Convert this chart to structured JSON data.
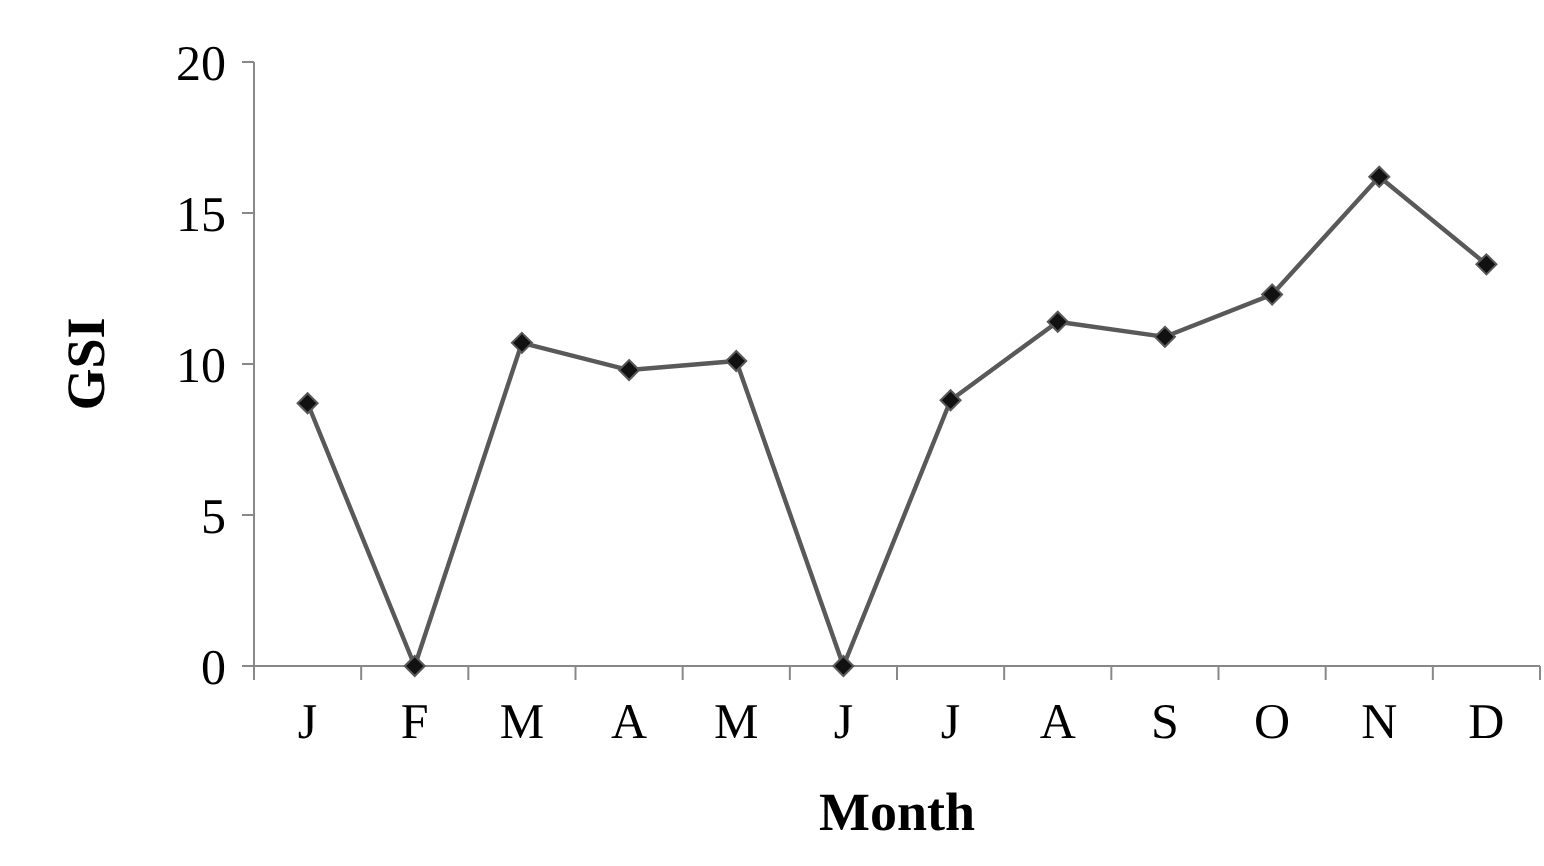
{
  "chart_data": {
    "type": "line",
    "xlabel": "Month",
    "ylabel": "GSI",
    "categories": [
      "J",
      "F",
      "M",
      "A",
      "M",
      "J",
      "J",
      "A",
      "S",
      "O",
      "N",
      "D"
    ],
    "series": [
      {
        "color": "#595959",
        "values": [
          8.7,
          0,
          10.7,
          9.8,
          10.1,
          0,
          8.8,
          11.4,
          10.9,
          12.3,
          16.2,
          13.3
        ]
      }
    ],
    "ylim": [
      0,
      20
    ],
    "yticks": [
      0,
      5,
      10,
      15,
      20
    ],
    "grid": false,
    "marker": "diamond",
    "line_style": "solid"
  }
}
